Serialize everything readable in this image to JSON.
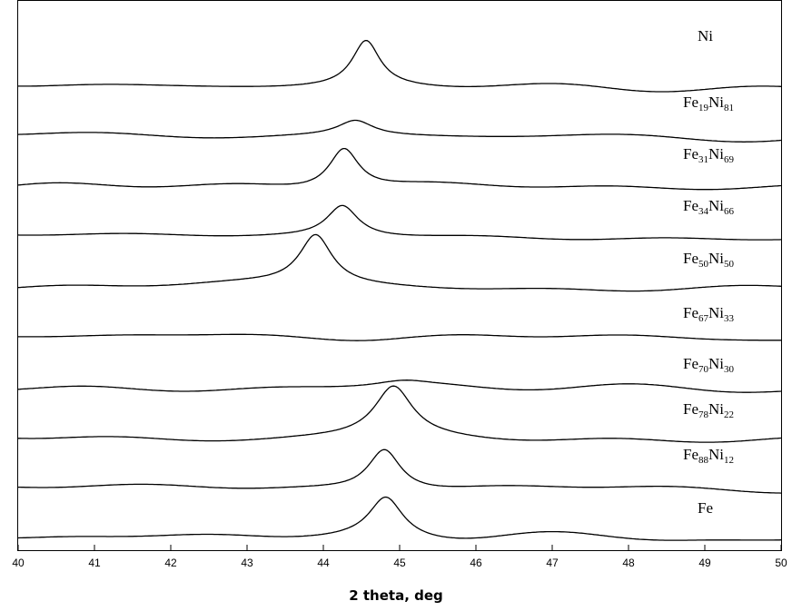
{
  "chart_data": {
    "type": "line",
    "title": "",
    "xlabel": "2 theta, deg",
    "ylabel": "",
    "xlim": [
      40,
      50
    ],
    "xticks": [
      40,
      41,
      42,
      43,
      44,
      45,
      46,
      47,
      48,
      49,
      50
    ],
    "grid": false,
    "legend": "none",
    "series": [
      {
        "name": "Ni",
        "label_parts": [
          {
            "t": "Ni",
            "sub": false
          }
        ],
        "baseline": [
          1.0,
          0.0
        ],
        "peak": {
          "center": 44.56,
          "height": 1.0,
          "width": 0.22
        },
        "noise_seed": 3
      },
      {
        "name": "Fe19Ni81",
        "label_parts": [
          {
            "t": "Fe",
            "sub": false
          },
          {
            "t": "19",
            "sub": true
          },
          {
            "t": "Ni",
            "sub": false
          },
          {
            "t": "81",
            "sub": true
          }
        ],
        "baseline": [
          1.0,
          0.0
        ],
        "peak": {
          "center": 44.42,
          "height": 0.55,
          "width": 0.28
        },
        "noise_seed": 7
      },
      {
        "name": "Fe31Ni69",
        "label_parts": [
          {
            "t": "Fe",
            "sub": false
          },
          {
            "t": "31",
            "sub": true
          },
          {
            "t": "Ni",
            "sub": false
          },
          {
            "t": "69",
            "sub": true
          }
        ],
        "baseline": [
          1.0,
          0.0
        ],
        "peak": {
          "center": 44.27,
          "height": 0.95,
          "width": 0.24
        },
        "noise_seed": 11
      },
      {
        "name": "Fe34Ni66",
        "label_parts": [
          {
            "t": "Fe",
            "sub": false
          },
          {
            "t": "34",
            "sub": true
          },
          {
            "t": "Ni",
            "sub": false
          },
          {
            "t": "66",
            "sub": true
          }
        ],
        "baseline": [
          1.0,
          0.0
        ],
        "peak": {
          "center": 44.25,
          "height": 0.78,
          "width": 0.25
        },
        "noise_seed": 13
      },
      {
        "name": "Fe50Ni50",
        "label_parts": [
          {
            "t": "Fe",
            "sub": false
          },
          {
            "t": "50",
            "sub": true
          },
          {
            "t": "Ni",
            "sub": false
          },
          {
            "t": "50",
            "sub": true
          }
        ],
        "baseline": [
          1.0,
          0.0
        ],
        "peak": {
          "center": 43.9,
          "height": 1.0,
          "width": 0.26
        },
        "noise_seed": 17
      },
      {
        "name": "Fe67Ni33",
        "label_parts": [
          {
            "t": "Fe",
            "sub": false
          },
          {
            "t": "67",
            "sub": true
          },
          {
            "t": "Ni",
            "sub": false
          },
          {
            "t": "33",
            "sub": true
          }
        ],
        "baseline": [
          1.0,
          0.0
        ],
        "peak": {
          "center": 45.1,
          "height": 0.08,
          "width": 0.6
        },
        "noise_seed": 19
      },
      {
        "name": "Fe70Ni30",
        "label_parts": [
          {
            "t": "Fe",
            "sub": false
          },
          {
            "t": "70",
            "sub": true
          },
          {
            "t": "Ni",
            "sub": false
          },
          {
            "t": "30",
            "sub": true
          }
        ],
        "baseline": [
          1.0,
          0.0
        ],
        "peak": {
          "center": 45.05,
          "height": 0.32,
          "width": 0.45
        },
        "noise_seed": 23
      },
      {
        "name": "Fe78Ni22",
        "label_parts": [
          {
            "t": "Fe",
            "sub": false
          },
          {
            "t": "78",
            "sub": true
          },
          {
            "t": "Ni",
            "sub": false
          },
          {
            "t": "22",
            "sub": true
          }
        ],
        "baseline": [
          1.0,
          0.0
        ],
        "peak": {
          "center": 44.92,
          "height": 1.0,
          "width": 0.3
        },
        "noise_seed": 29
      },
      {
        "name": "Fe88Ni12",
        "label_parts": [
          {
            "t": "Fe",
            "sub": false
          },
          {
            "t": "88",
            "sub": true
          },
          {
            "t": "Ni",
            "sub": false
          },
          {
            "t": "12",
            "sub": true
          }
        ],
        "baseline": [
          1.0,
          0.0
        ],
        "peak": {
          "center": 44.8,
          "height": 1.0,
          "width": 0.26
        },
        "noise_seed": 31
      },
      {
        "name": "Fe",
        "label_parts": [
          {
            "t": "Fe",
            "sub": false
          }
        ],
        "baseline": [
          1.0,
          0.0
        ],
        "peak": {
          "center": 44.82,
          "height": 1.0,
          "width": 0.27
        },
        "noise_seed": 37
      }
    ]
  }
}
